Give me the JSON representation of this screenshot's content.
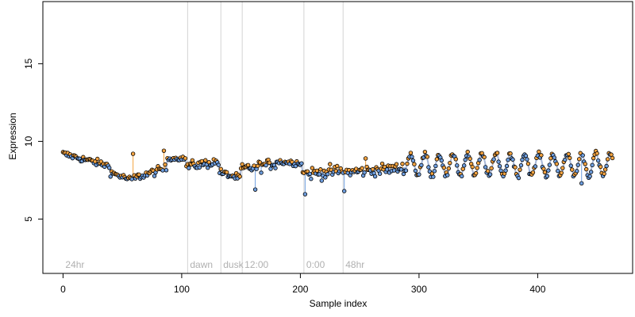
{
  "chart_data": {
    "type": "scatter",
    "title": "",
    "xlabel": "Sample index",
    "ylabel": "Expression",
    "xlim": [
      -17,
      480
    ],
    "ylim": [
      1.5,
      19
    ],
    "xticks": [
      "0",
      "100",
      "200",
      "300",
      "400"
    ],
    "xtick_values": [
      0,
      100,
      200,
      300,
      400
    ],
    "yticks": [
      "5",
      "10",
      "15"
    ],
    "ytick_values": [
      5,
      10,
      15
    ],
    "grid": false,
    "legend": "none",
    "phase_markers": [
      {
        "x": 0,
        "label": "24hr",
        "line": false
      },
      {
        "x": 105,
        "label": "dawn",
        "line": true
      },
      {
        "x": 133,
        "label": "dusk",
        "line": true
      },
      {
        "x": 151,
        "label": "12:00",
        "line": true
      },
      {
        "x": 203,
        "label": "0:00",
        "line": true
      },
      {
        "x": 236,
        "label": "48hr",
        "line": true
      }
    ],
    "colors": {
      "above_trend": "#f4a340",
      "below_trend": "#6f9fe0",
      "trend_line": "#a8b8d8",
      "phase_line": "#d3d3d3",
      "phase_text": "#b0b0b0"
    },
    "series": [
      {
        "kind": "profile",
        "segments": [
          {
            "x0": 0,
            "x1": 40,
            "y0": 9.2,
            "y1": 8.4,
            "noise": 0.22
          },
          {
            "x0": 40,
            "x1": 58,
            "y0": 8.0,
            "y1": 7.5,
            "noise": 0.2
          },
          {
            "x0": 58,
            "x1": 88,
            "y0": 7.6,
            "y1": 8.3,
            "noise": 0.25
          },
          {
            "x0": 88,
            "x1": 104,
            "y0": 8.9,
            "y1": 8.9,
            "noise": 0.12
          },
          {
            "x0": 104,
            "x1": 132,
            "y0": 8.4,
            "y1": 8.7,
            "noise": 0.3
          },
          {
            "x0": 132,
            "x1": 150,
            "y0": 8.0,
            "y1": 7.6,
            "noise": 0.25
          },
          {
            "x0": 150,
            "x1": 180,
            "y0": 8.2,
            "y1": 8.6,
            "noise": 0.35
          },
          {
            "x0": 180,
            "x1": 202,
            "y0": 8.7,
            "y1": 8.6,
            "noise": 0.2
          },
          {
            "x0": 202,
            "x1": 235,
            "y0": 7.9,
            "y1": 8.1,
            "noise": 0.4
          },
          {
            "x0": 235,
            "x1": 290,
            "y0": 8.0,
            "y1": 8.3,
            "noise": 0.35
          }
        ],
        "oscillation": {
          "x0": 290,
          "x1": 463,
          "center": 8.5,
          "amplitude": 0.7,
          "period": 12,
          "noise": 0.2
        },
        "outliers": [
          {
            "x": 59,
            "y": 9.2
          },
          {
            "x": 85,
            "y": 9.4
          },
          {
            "x": 204,
            "y": 6.6
          },
          {
            "x": 237,
            "y": 6.8
          },
          {
            "x": 255,
            "y": 8.9
          },
          {
            "x": 437,
            "y": 7.3
          },
          {
            "x": 162,
            "y": 6.9
          }
        ]
      }
    ]
  }
}
